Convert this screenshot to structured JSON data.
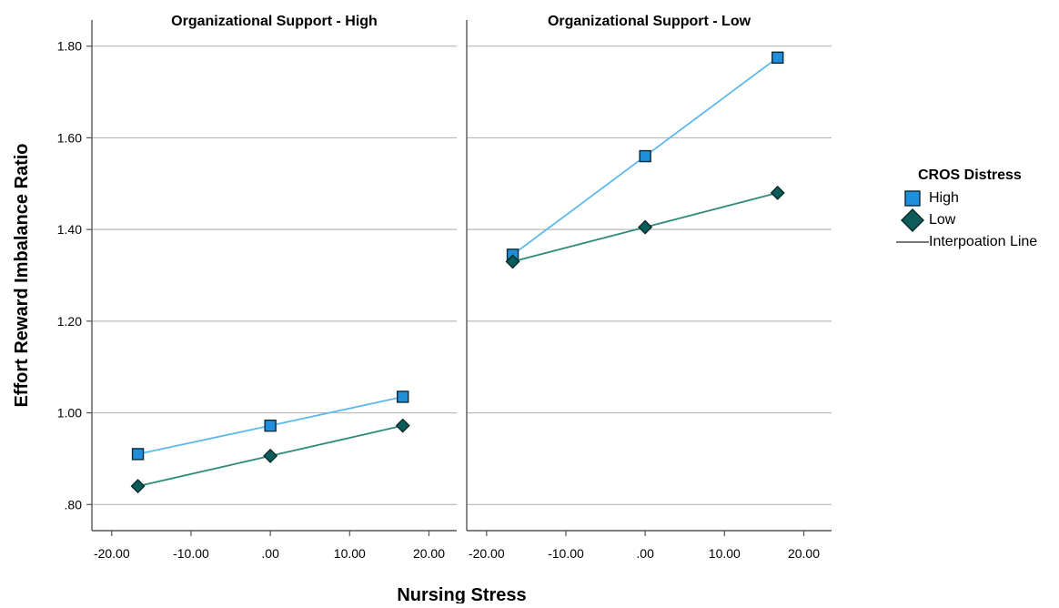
{
  "chart_data": {
    "type": "line",
    "xlabel": "Nursing Stress",
    "ylabel": "Effort Reward Imbalance Ratio",
    "xlim": [
      -22.5,
      23.5
    ],
    "ylim": [
      0.743,
      1.857
    ],
    "x_ticks": [
      "-20.00",
      "-10.00",
      ".00",
      "10.00",
      "20.00"
    ],
    "x_tick_values": [
      -20,
      -10,
      0,
      10,
      20
    ],
    "y_ticks": [
      ".80",
      "1.00",
      "1.20",
      "1.40",
      "1.60",
      "1.80"
    ],
    "y_tick_values": [
      0.8,
      1.0,
      1.2,
      1.4,
      1.6,
      1.8
    ],
    "grid": "horizontal",
    "legend": {
      "title": "CROS Distress",
      "placement": "right",
      "entries": [
        {
          "label": "High",
          "marker": "square",
          "color": "#1f8fdc",
          "line": "#5bb9f0"
        },
        {
          "label": "Low",
          "marker": "diamond",
          "color": "#0d5c5c",
          "line": "#2e8a7a"
        },
        {
          "label": "Interpoation Line",
          "marker": "line",
          "color": "#777777"
        }
      ]
    },
    "panels": [
      {
        "title": "Organizational Support - High",
        "x": [
          -16.7,
          0,
          16.7
        ],
        "series": [
          {
            "name": "High",
            "values": [
              0.91,
              0.972,
              1.035
            ]
          },
          {
            "name": "Low",
            "values": [
              0.84,
              0.906,
              0.972
            ]
          }
        ]
      },
      {
        "title": "Organizational Support - Low",
        "x": [
          -16.7,
          0,
          16.7
        ],
        "series": [
          {
            "name": "High",
            "values": [
              1.345,
              1.56,
              1.775
            ]
          },
          {
            "name": "Low",
            "values": [
              1.33,
              1.405,
              1.48
            ]
          }
        ]
      }
    ]
  }
}
